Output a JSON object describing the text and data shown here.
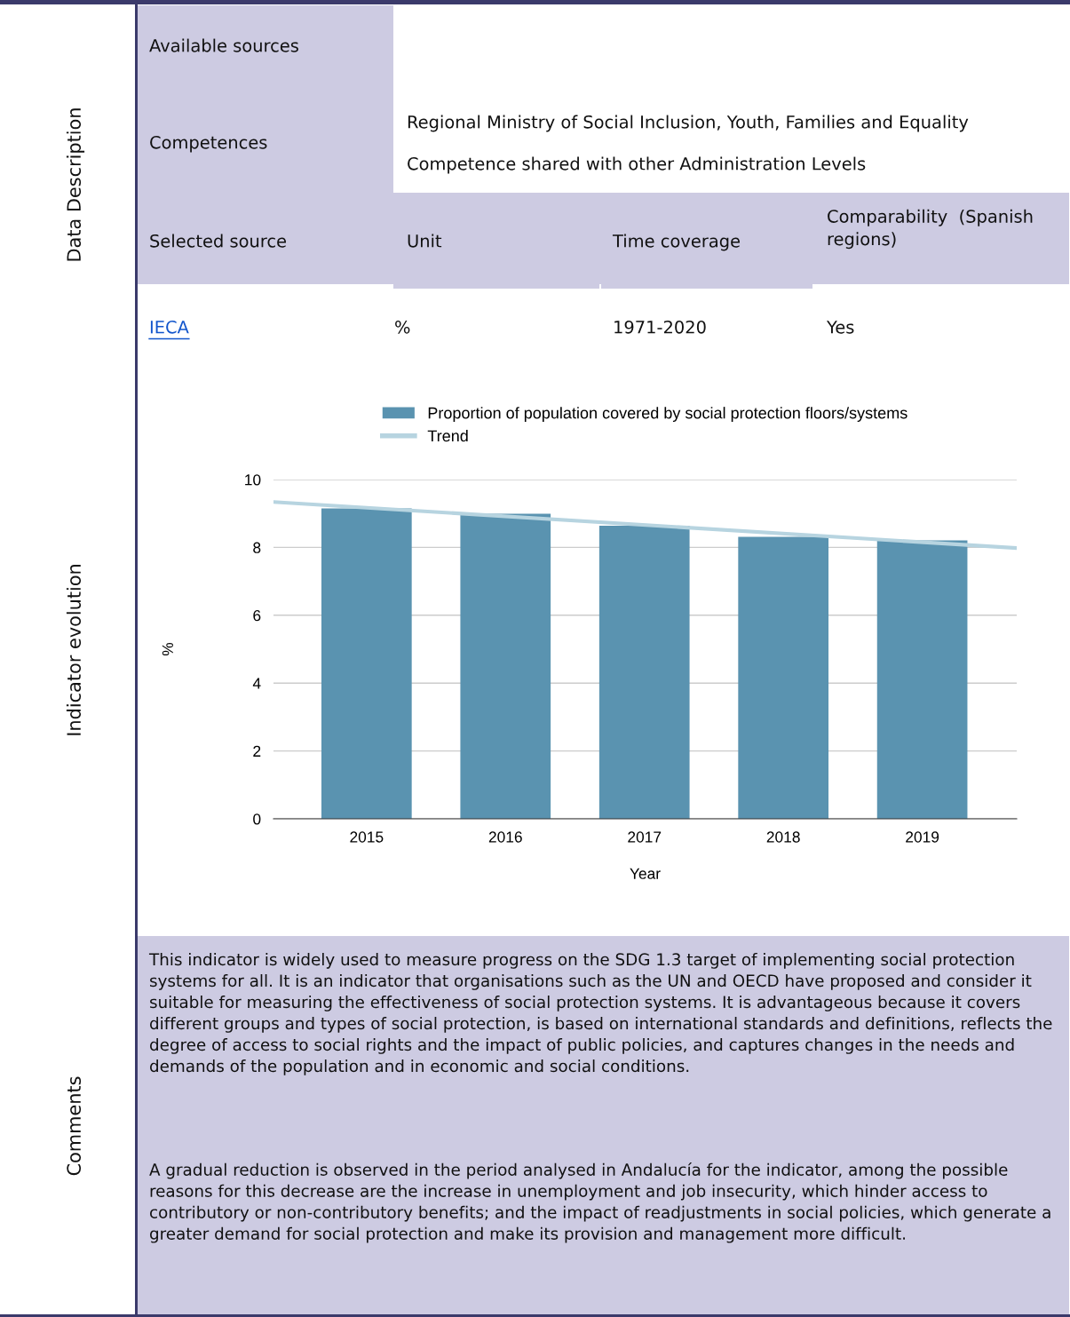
{
  "chart_data": {
    "type": "bar",
    "x": [
      2015,
      2016,
      2017,
      2018,
      2019
    ],
    "series": [
      {
        "name": "Proportion of population covered by social protection floors/systems",
        "color": "#5a93b0",
        "values": [
          9.15,
          8.99,
          8.64,
          8.31,
          8.21
        ]
      },
      {
        "name": "Trend",
        "type": "line",
        "color": "#b7d4e0",
        "x": [
          2014.33,
          2019.68
        ],
        "values": [
          9.34,
          7.98
        ]
      }
    ],
    "xlabel": "Year",
    "ylabel": "%",
    "xlim": [
      2014.33,
      2019.68
    ],
    "xticks": [
      2015,
      2016,
      2017,
      2018,
      2019
    ],
    "ylim": [
      0,
      10
    ],
    "yticks": [
      0,
      2,
      4,
      6,
      8,
      10
    ],
    "grid": "y",
    "legend": "top",
    "annotations": [
      "Data Description",
      "Indicator evolution",
      "Comments",
      "Available sources",
      "Competences",
      "Regional Ministry of Social Inclusion, Youth, Families and Equality",
      "Competence shared with other Administration Levels",
      "Selected source",
      "Unit",
      "Time coverage",
      "Comparability  (Spanish regions)",
      "IECA",
      "%",
      "1971-2020",
      "Yes",
      "This indicator is widely used to measure progress on the SDG 1.3 target of implementing social protection systems for all. It is an indicator that organisations such as the UN and OECD have proposed and consider it suitable for measuring the effectiveness of social protection systems. It is advantageous because it covers different groups and types of social protection, is based on international standards and definitions, reflects the degree of access to social rights and the impact of public policies, and captures changes in the needs and demands of the population and in economic and social conditions.",
      "A gradual reduction is observed in the period analysed in Andalucía for the indicator, among the possible reasons for this decrease are the increase in unemployment and job insecurity, which hinder access to contributory or non-contributory benefits; and the impact of readjustments in social policies, which generate a greater demand for social protection and make its provision and management more difficult."
    ]
  }
}
